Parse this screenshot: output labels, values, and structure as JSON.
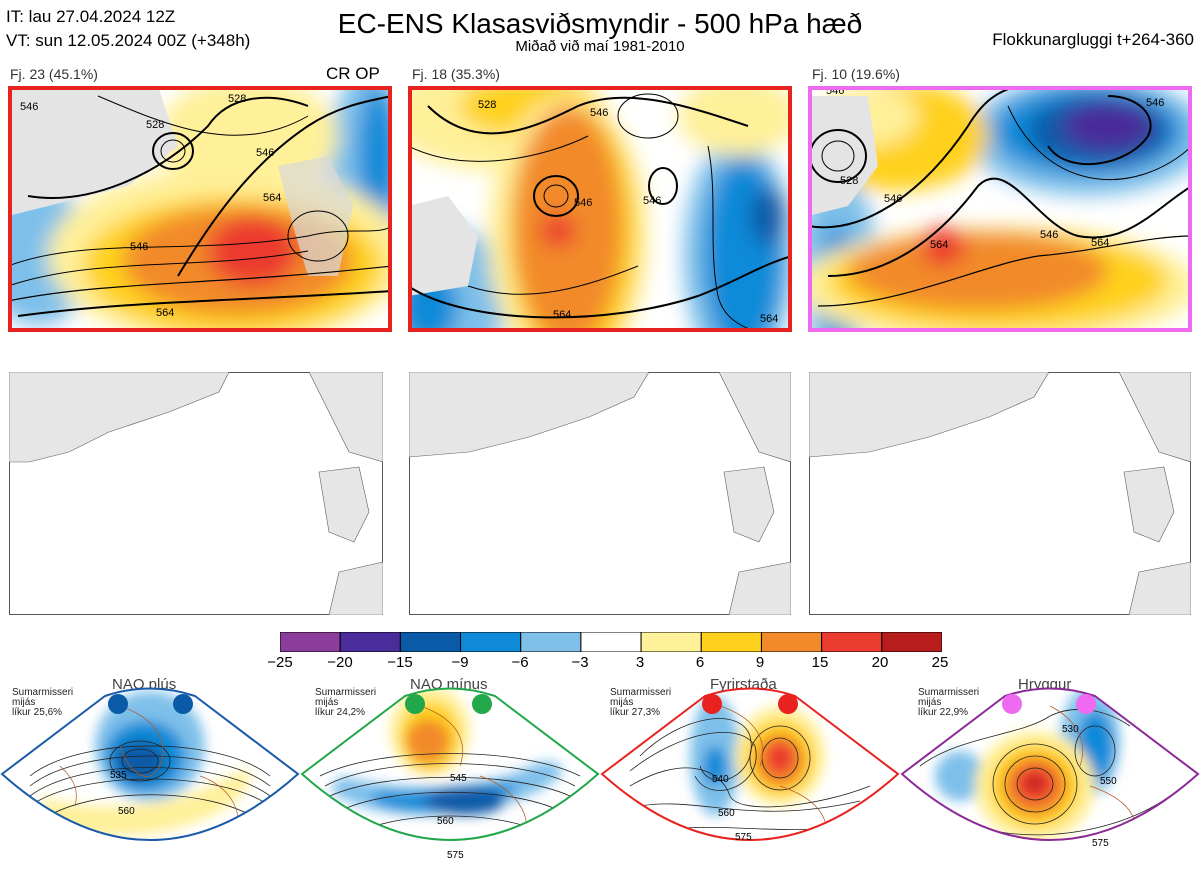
{
  "header": {
    "it_line": "IT: lau 27.04.2024 12Z",
    "vt_line": "VT: sun 12.05.2024 00Z  (+348h)",
    "title": "EC-ENS Klasasviðsmyndir - 500 hPa hæð",
    "subtitle": "Miðað við maí 1981-2010",
    "window": "Flokkunargluggi t+264-360"
  },
  "panels": [
    {
      "label": "Fj. 23 (45.1%)",
      "tag": "CR OP",
      "border": "#e8231f",
      "contours": [
        "546",
        "528",
        "528",
        "546",
        "564",
        "546",
        "564"
      ]
    },
    {
      "label": "Fj. 18 (35.3%)",
      "tag": "",
      "border": "#e8231f",
      "contours": [
        "528",
        "546",
        "546",
        "546",
        "564",
        "564"
      ]
    },
    {
      "label": "Fj. 10 (19.6%)",
      "tag": "",
      "border": "#ee6af0",
      "contours": [
        "546",
        "528",
        "546",
        "546",
        "564",
        "564",
        "546"
      ]
    }
  ],
  "colorbar": {
    "ticks": [
      "−25",
      "−20",
      "−15",
      "−9",
      "−6",
      "−3",
      "3",
      "6",
      "9",
      "15",
      "20",
      "25"
    ],
    "colors": [
      "#8b3d9c",
      "#4a2c9a",
      "#0b5aa8",
      "#0f8ad8",
      "#7ec0ea",
      "#ffffff",
      "#fff09a",
      "#ffd11c",
      "#f28a2a",
      "#ec3b2f",
      "#b81d1d"
    ]
  },
  "regimes": [
    {
      "name": "NAO plús",
      "season": "Sumarmisseri",
      "freq": "mijás",
      "prob": "líkur 25,6%",
      "dot": "#0b5aa8",
      "frame": "#1a5aa8",
      "contours": [
        "535",
        "560"
      ]
    },
    {
      "name": "NAO mínus",
      "season": "Sumarmisseri",
      "freq": "mijás",
      "prob": "líkur 24,2%",
      "dot": "#22a84a",
      "frame": "#22a84a",
      "contours": [
        "545",
        "560",
        "575"
      ]
    },
    {
      "name": "Fyrirstaða",
      "season": "Sumarmisseri",
      "freq": "mijás",
      "prob": "líkur 27,3%",
      "dot": "#e8231f",
      "frame": "#e8231f",
      "contours": [
        "540",
        "560",
        "575"
      ]
    },
    {
      "name": "Hryggur",
      "season": "Sumarmisseri",
      "freq": "mijás",
      "prob": "líkur 22,9%",
      "dot": "#ee6af0",
      "frame": "#8c2a96",
      "contours": [
        "530",
        "550",
        "575"
      ]
    }
  ]
}
